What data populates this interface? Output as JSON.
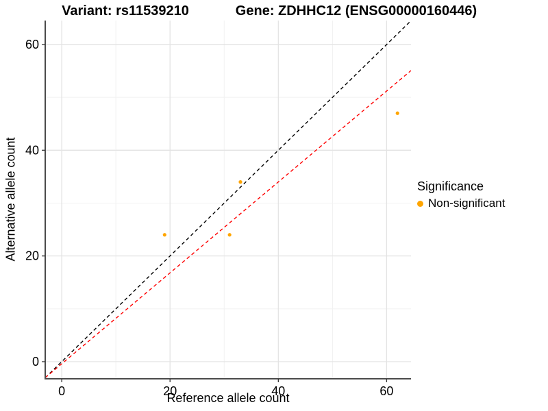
{
  "header": {
    "left_title": "Variant: rs11539210",
    "right_title": "Gene: ZDHHC12 (ENSG00000160446)"
  },
  "chart_data": {
    "type": "scatter",
    "xlabel": "Reference allele count",
    "ylabel": "Alternative allele count",
    "xlim": [
      -3.05,
      64.5
    ],
    "ylim": [
      -3.24,
      64.53
    ],
    "x_ticks": [
      0,
      20,
      40,
      60
    ],
    "y_ticks": [
      0,
      20,
      40,
      60
    ],
    "x_minor_ticks": [
      10,
      30,
      50
    ],
    "y_minor_ticks": [
      10,
      30,
      50
    ],
    "grid": "on",
    "points": [
      {
        "x": 19,
        "y": 24
      },
      {
        "x": 31,
        "y": 24
      },
      {
        "x": 33,
        "y": 34
      },
      {
        "x": 62,
        "y": 47
      }
    ],
    "point_color": "#FFA500",
    "lines": [
      {
        "name": "identity-line",
        "slope": 1,
        "intercept": 0,
        "color": "#000000",
        "style": "dashed"
      },
      {
        "name": "fit-line",
        "slope": 0.86,
        "intercept": -0.4,
        "color": "#FF0000",
        "style": "dashed"
      }
    ],
    "legend": {
      "position": "right",
      "title": "Significance",
      "items": [
        {
          "label": "Non-significant",
          "color": "#FFA500"
        }
      ]
    },
    "colors": {
      "grid_major": "#E3E3E3",
      "grid_minor": "#F1F1F1",
      "axis_line": "#4a4a4a",
      "tick_mark": "#333333",
      "tick_text": "#000000",
      "background": "#FFFFFF"
    }
  }
}
